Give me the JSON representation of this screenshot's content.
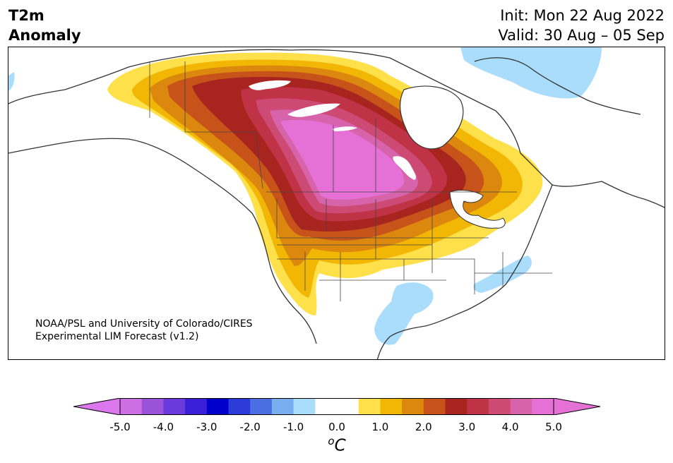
{
  "title": {
    "line1": "T2m",
    "line2": "Anomaly"
  },
  "dates": {
    "init": "Init: Mon 22 Aug 2022",
    "valid": "Valid: 30 Aug – 05 Sep"
  },
  "credit": {
    "line1": "NOAA/PSL and University of Colorado/CIRES",
    "line2": "Experimental LIM Forecast (v1.2)"
  },
  "colorbar": {
    "unit": "oC",
    "tick_labels": [
      "-5.0",
      "-4.0",
      "-3.0",
      "-2.0",
      "-1.0",
      "0.0",
      "1.0",
      "2.0",
      "3.0",
      "4.0",
      "5.0"
    ],
    "min": -5.0,
    "max": 5.0,
    "bin_colors": [
      "#cd6ee4",
      "#9a52d9",
      "#6a3adc",
      "#3a1fd6",
      "#0000cc",
      "#2b3ad9",
      "#4b6fe3",
      "#77aef0",
      "#a9ddfb",
      "#ffffff",
      "#ffffff",
      "#fee04a",
      "#f2b705",
      "#dc880e",
      "#c7531a",
      "#a8241f",
      "#c03245",
      "#cd4a75",
      "#d763ab",
      "#e570d6"
    ],
    "under_color": "#dd77ee",
    "over_color": "#e570d6"
  },
  "map": {
    "region": "North America",
    "land_color": "#ffffff",
    "border_color": "#333333"
  }
}
